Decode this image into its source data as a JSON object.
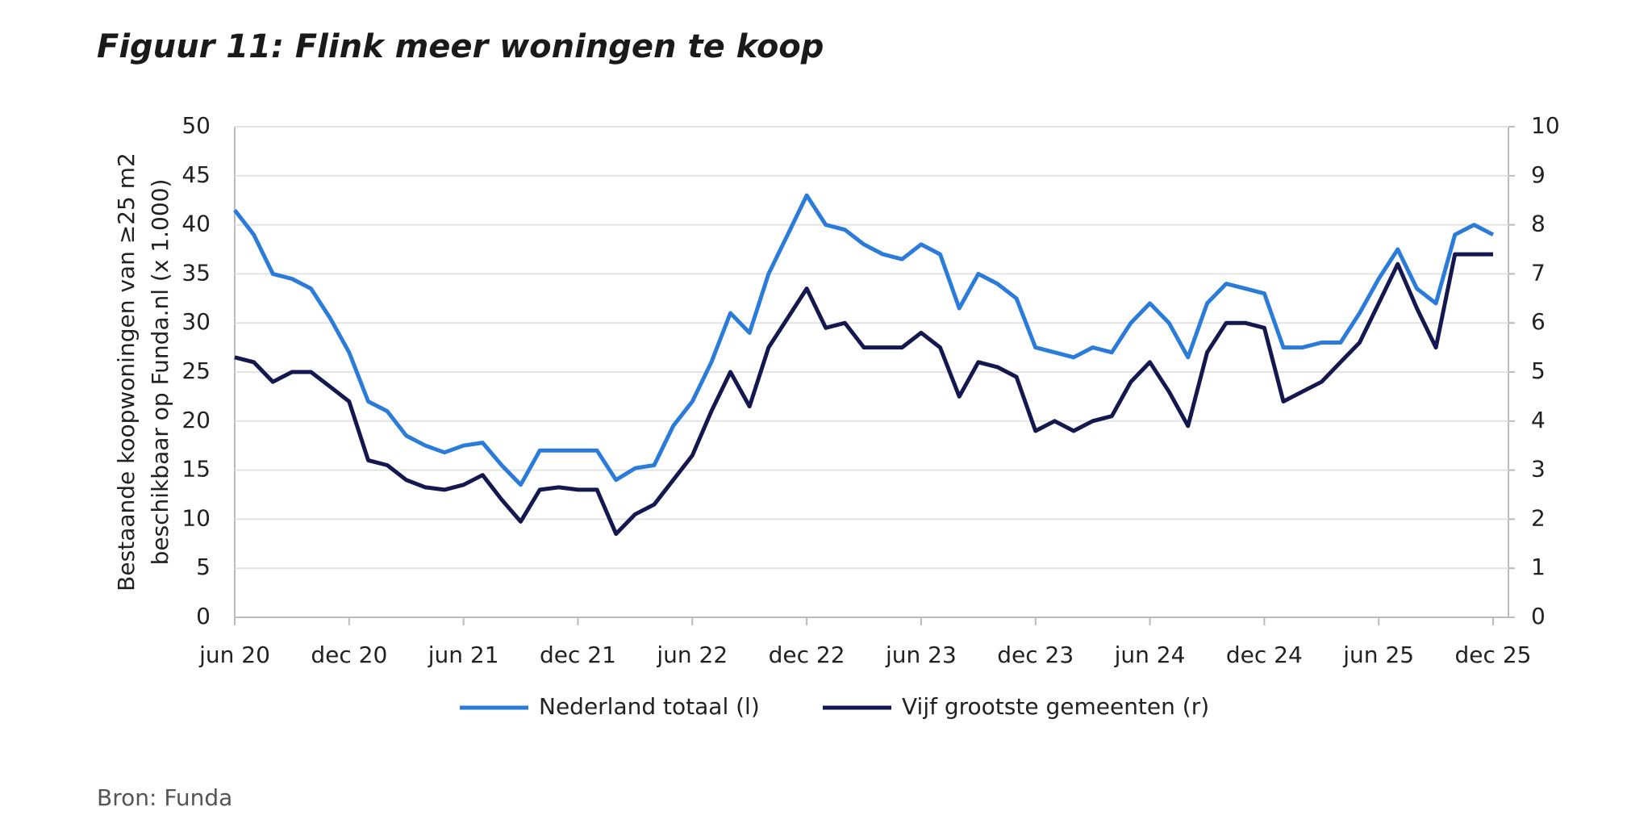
{
  "chart_data": {
    "type": "line",
    "title": "Figuur 11: Flink meer woningen te koop",
    "y_label": [
      "Bestaande koopwoningen van ≥25 m2",
      "beschikbaar op Funda.nl (x 1.000)"
    ],
    "source": "Bron: Funda",
    "categories": [
      "jun 20",
      null,
      null,
      null,
      null,
      null,
      "dec 20",
      null,
      null,
      null,
      null,
      null,
      "jun 21",
      null,
      null,
      null,
      null,
      null,
      "dec 21",
      null,
      null,
      null,
      null,
      null,
      "jun 22",
      null,
      null,
      null,
      null,
      null,
      "dec 22",
      null,
      null,
      null,
      null,
      null,
      "jun 23",
      null,
      null,
      null,
      null,
      null,
      "dec 23",
      null,
      null,
      null,
      null,
      null,
      "jun 24",
      null,
      null,
      null,
      null,
      null,
      "dec 24",
      null,
      null,
      null,
      null,
      null,
      "jun 25",
      null,
      null,
      null,
      null,
      null,
      "dec 25"
    ],
    "ylim": [
      0,
      50
    ],
    "yticks": [
      0,
      5,
      10,
      15,
      20,
      25,
      30,
      35,
      40,
      45,
      50
    ],
    "y2lim": [
      0,
      10
    ],
    "y2ticks": [
      0,
      1,
      2,
      3,
      4,
      5,
      6,
      7,
      8,
      9,
      10
    ],
    "grid": true,
    "series": [
      {
        "name": "Nederland totaal (l)",
        "color": "#2b7bd9",
        "values": [
          41.5,
          39,
          35,
          34.5,
          33.5,
          30.5,
          27,
          22,
          21,
          18.5,
          17.5,
          16.8,
          17.5,
          17.8,
          15.5,
          13.5,
          17,
          17,
          17,
          17,
          14,
          15.2,
          15.5,
          19.5,
          22,
          26,
          31,
          29,
          35,
          39,
          43,
          40,
          39.5,
          38,
          37,
          36.5,
          38,
          37,
          31.5,
          35,
          34,
          32.5,
          27.5,
          27,
          26.5,
          27.5,
          27,
          30,
          32,
          30,
          26.5,
          32,
          34,
          33.5,
          33,
          27.5,
          27.5,
          28,
          28,
          31,
          34.5,
          37.5,
          33.5,
          32,
          39,
          40,
          39
        ]
      },
      {
        "name": "Vijf grootste gemeenten (r)",
        "color": "#15174f",
        "axis": "y2",
        "values": [
          5.3,
          5.2,
          4.8,
          5.0,
          5.0,
          4.7,
          4.4,
          3.2,
          3.1,
          2.8,
          2.65,
          2.6,
          2.7,
          2.9,
          2.4,
          1.95,
          2.6,
          2.65,
          2.6,
          2.6,
          1.7,
          2.1,
          2.3,
          2.8,
          3.3,
          4.2,
          5.0,
          4.3,
          5.5,
          6.1,
          6.7,
          5.9,
          6.0,
          5.5,
          5.5,
          5.5,
          5.8,
          5.5,
          4.5,
          5.2,
          5.1,
          4.9,
          3.8,
          4.0,
          3.8,
          4.0,
          4.1,
          4.8,
          5.2,
          4.6,
          3.9,
          5.4,
          6.0,
          6.0,
          5.9,
          4.4,
          4.6,
          4.8,
          5.2,
          5.6,
          6.4,
          7.2,
          6.3,
          5.5,
          7.4,
          7.4,
          7.4
        ]
      }
    ]
  }
}
